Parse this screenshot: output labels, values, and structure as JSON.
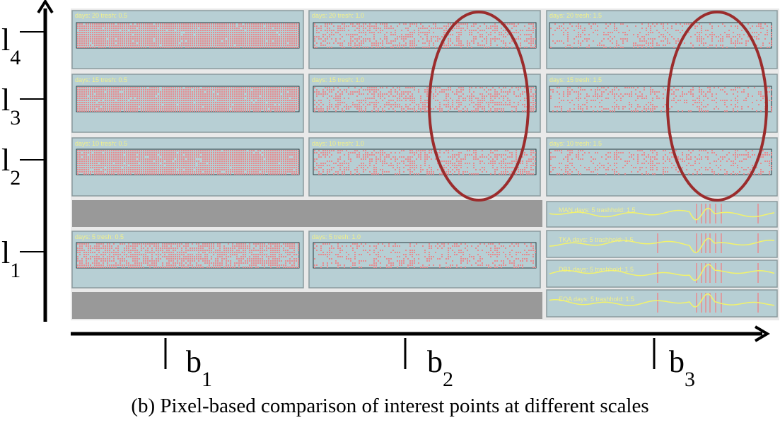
{
  "y_axis_labels": [
    {
      "id": "l4",
      "base": "l",
      "sub": "4"
    },
    {
      "id": "l3",
      "base": "l",
      "sub": "3"
    },
    {
      "id": "l2",
      "base": "l",
      "sub": "2"
    },
    {
      "id": "l1",
      "base": "l",
      "sub": "1"
    }
  ],
  "x_axis_labels": [
    {
      "id": "b1",
      "base": "b",
      "sub": "1"
    },
    {
      "id": "b2",
      "base": "b",
      "sub": "2"
    },
    {
      "id": "b3",
      "base": "b",
      "sub": "3"
    }
  ],
  "caption": "(b)  Pixel-based comparison of interest points at different scales",
  "panel_rows": [
    {
      "row": "l4",
      "titles": [
        "days: 20 tresh: 0.5",
        "days: 20 tresh: 1.0",
        "days: 20 tresh: 1.5"
      ],
      "densities": [
        0.95,
        0.45,
        0.28
      ]
    },
    {
      "row": "l3",
      "titles": [
        "days: 15 tresh: 0.5",
        "days: 15 tresh: 1.0",
        "days: 15 tresh: 1.5"
      ],
      "densities": [
        0.95,
        0.45,
        0.28
      ]
    },
    {
      "row": "l2",
      "titles": [
        "days: 10 tresh: 0.5",
        "days: 10 tresh: 1.0",
        "days: 10 tresh: 1.5"
      ],
      "densities": [
        0.95,
        0.45,
        0.28
      ]
    },
    {
      "row": "l1",
      "titles": [
        "days: 5 tresh: 0.5",
        "days: 5 tresh: 1.0"
      ],
      "densities": [
        0.7,
        0.3
      ]
    }
  ],
  "wave_panels": [
    {
      "title": "MAN  days: 5 trashhold: 1.5"
    },
    {
      "title": "TKA  days: 5 trashhold: 1.5"
    },
    {
      "title": "DB1  days: 5 trashhold: 1.5"
    },
    {
      "title": "EOA  days: 5 trashhold: 1.5"
    }
  ],
  "colors": {
    "panel_bg": "#b7cfd4",
    "panel_border": "#8a9a9e",
    "dots": "#e88a8e",
    "title_text": "#f2f08a",
    "wave": "#f3f36a",
    "gray_bar": "#999999",
    "ellipse": "#9b2c2c",
    "frame_bg": "#e9e9e9"
  }
}
